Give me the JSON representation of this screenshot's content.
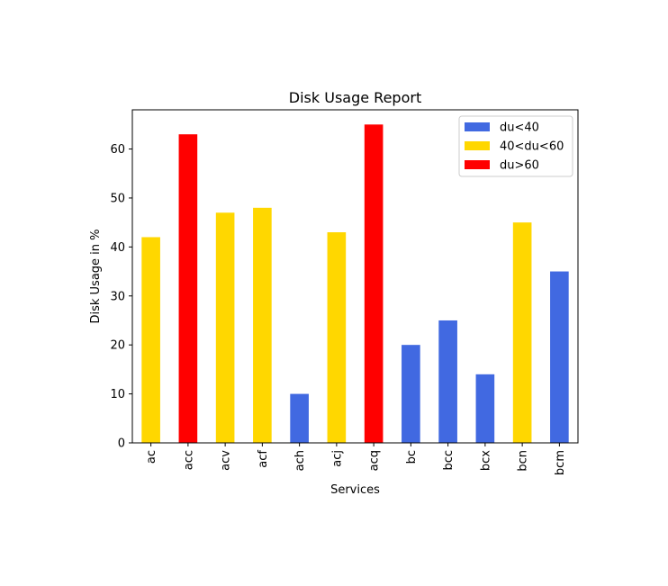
{
  "chart_data": {
    "type": "bar",
    "title": "Disk Usage Report",
    "xlabel": "Services",
    "ylabel": "Disk Usage in %",
    "ylim": [
      0,
      68
    ],
    "yticks": [
      0,
      10,
      20,
      30,
      40,
      50,
      60
    ],
    "grid": false,
    "legend_position": "top-right",
    "categories": [
      "ac",
      "acc",
      "acv",
      "acf",
      "ach",
      "acj",
      "acq",
      "bc",
      "bcc",
      "bcx",
      "bcn",
      "bcm"
    ],
    "values": [
      42,
      63,
      47,
      48,
      10,
      43,
      65,
      20,
      25,
      14,
      45,
      35
    ],
    "bar_groups": [
      "mid",
      "high",
      "mid",
      "mid",
      "low",
      "mid",
      "high",
      "low",
      "low",
      "low",
      "mid",
      "low"
    ],
    "legend": [
      {
        "key": "low",
        "label": "du<40",
        "color": "#4169e1"
      },
      {
        "key": "mid",
        "label": "40<du<60",
        "color": "#ffd700"
      },
      {
        "key": "high",
        "label": "du>60",
        "color": "#ff0000"
      }
    ]
  }
}
